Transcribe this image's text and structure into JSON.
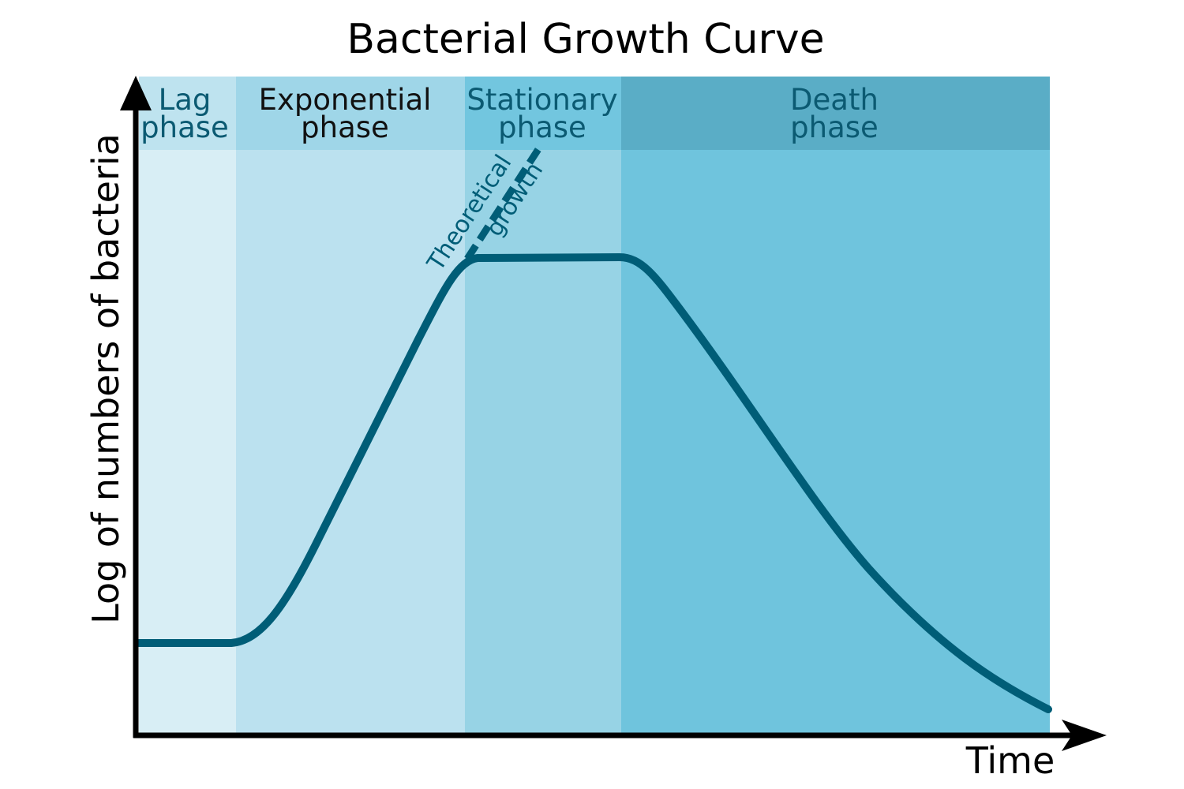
{
  "title": "Bacterial Growth Curve",
  "y_axis_label": "Log of numbers of bacteria",
  "x_axis_label": "Time",
  "phases": [
    {
      "line1": "Lag",
      "line2": "phase",
      "body_color": "#d8eef5",
      "header_color": "#bee3ef",
      "text_color": "#0b5a72"
    },
    {
      "line1": "Exponential",
      "line2": "phase",
      "body_color": "#bbe1ef",
      "header_color": "#9fd6e8",
      "text_color": "#111111"
    },
    {
      "line1": "Stationary",
      "line2": "phase",
      "body_color": "#97d3e5",
      "header_color": "#72c6df",
      "text_color": "#0b5a72"
    },
    {
      "line1": "Death",
      "line2": "phase",
      "body_color": "#6fc4dd",
      "header_color": "#5aadc6",
      "text_color": "#0b5a72"
    }
  ],
  "annotation": {
    "line1": "Theoretical",
    "line2": "growth"
  },
  "curve_color": "#005d77"
}
